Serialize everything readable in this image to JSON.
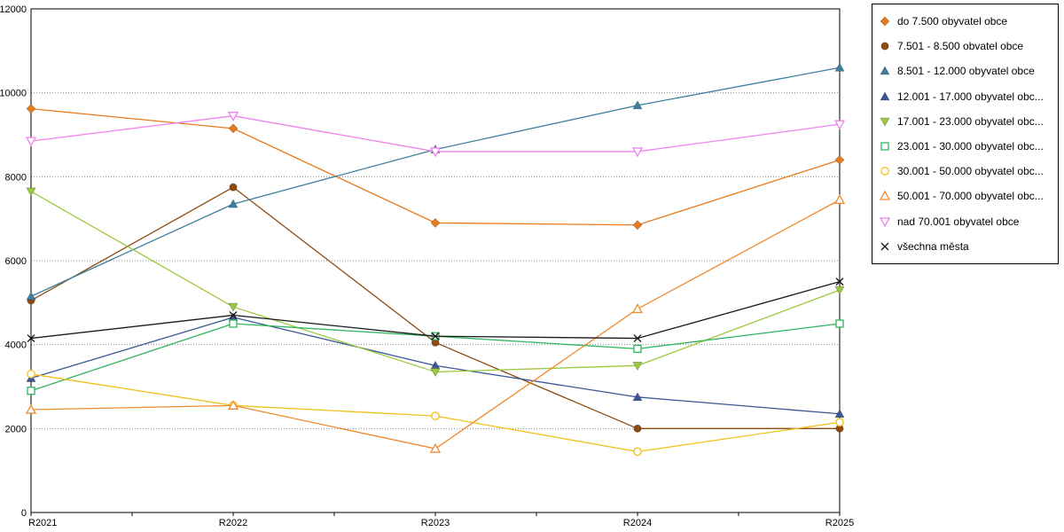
{
  "chart_data": {
    "type": "line",
    "title": "",
    "xlabel": "",
    "ylabel": "",
    "categories": [
      "R2021",
      "R2022",
      "R2023",
      "R2024",
      "R2025"
    ],
    "ylim": [
      0,
      12000
    ],
    "ytick_step": 2000,
    "grid": "horizontal-dotted",
    "legend_position": "right",
    "series": [
      {
        "name": "do 7.500 obyvatel obce",
        "color": "#E87B1E",
        "marker": "diamond",
        "fill": "filled",
        "values": [
          9620,
          9150,
          6900,
          6850,
          8400
        ]
      },
      {
        "name": "7.501 - 8.500 obvatel obce",
        "color": "#8E4B10",
        "marker": "circle",
        "fill": "filled",
        "values": [
          5050,
          7750,
          4050,
          2000,
          2000
        ]
      },
      {
        "name": "8.501 - 12.000 obyvatel obce",
        "color": "#3E7E9E",
        "marker": "triangle-up",
        "fill": "filled",
        "values": [
          5150,
          7350,
          8650,
          9700,
          10600
        ]
      },
      {
        "name": "12.001 - 17.000 obyvatel obc...",
        "color": "#3A5795",
        "marker": "triangle-up",
        "fill": "filled",
        "values": [
          3200,
          4650,
          3500,
          2750,
          2350
        ]
      },
      {
        "name": "17.001 - 23.000 obyvatel obc...",
        "color": "#9CC83E",
        "marker": "triangle-down",
        "fill": "filled",
        "values": [
          7650,
          4900,
          3350,
          3500,
          5300
        ]
      },
      {
        "name": "23.001 - 30.000 obyvatel obc...",
        "color": "#2FB45E",
        "marker": "square",
        "fill": "open",
        "values": [
          2900,
          4500,
          4200,
          3900,
          4500
        ]
      },
      {
        "name": "30.001 - 50.000 obyvatel obc...",
        "color": "#F0C11A",
        "marker": "circle",
        "fill": "open",
        "values": [
          3300,
          2550,
          2300,
          1450,
          2150
        ]
      },
      {
        "name": "50.001 - 70.000 obyvatel obc...",
        "color": "#F08A2E",
        "marker": "triangle-up",
        "fill": "open",
        "values": [
          2450,
          2550,
          1520,
          4850,
          7450
        ]
      },
      {
        "name": "nad 70.001 obyvatel obce",
        "color": "#EE82EE",
        "marker": "triangle-down",
        "fill": "open",
        "values": [
          8850,
          9450,
          8600,
          8600,
          9250
        ]
      },
      {
        "name": "všechna města",
        "color": "#1A1A1A",
        "marker": "x",
        "fill": "open",
        "values": [
          4150,
          4700,
          4200,
          4150,
          5500
        ]
      }
    ],
    "ytick_labels": [
      "0",
      "2000",
      "4000",
      "6000",
      "8000",
      "10000",
      "12000"
    ]
  }
}
